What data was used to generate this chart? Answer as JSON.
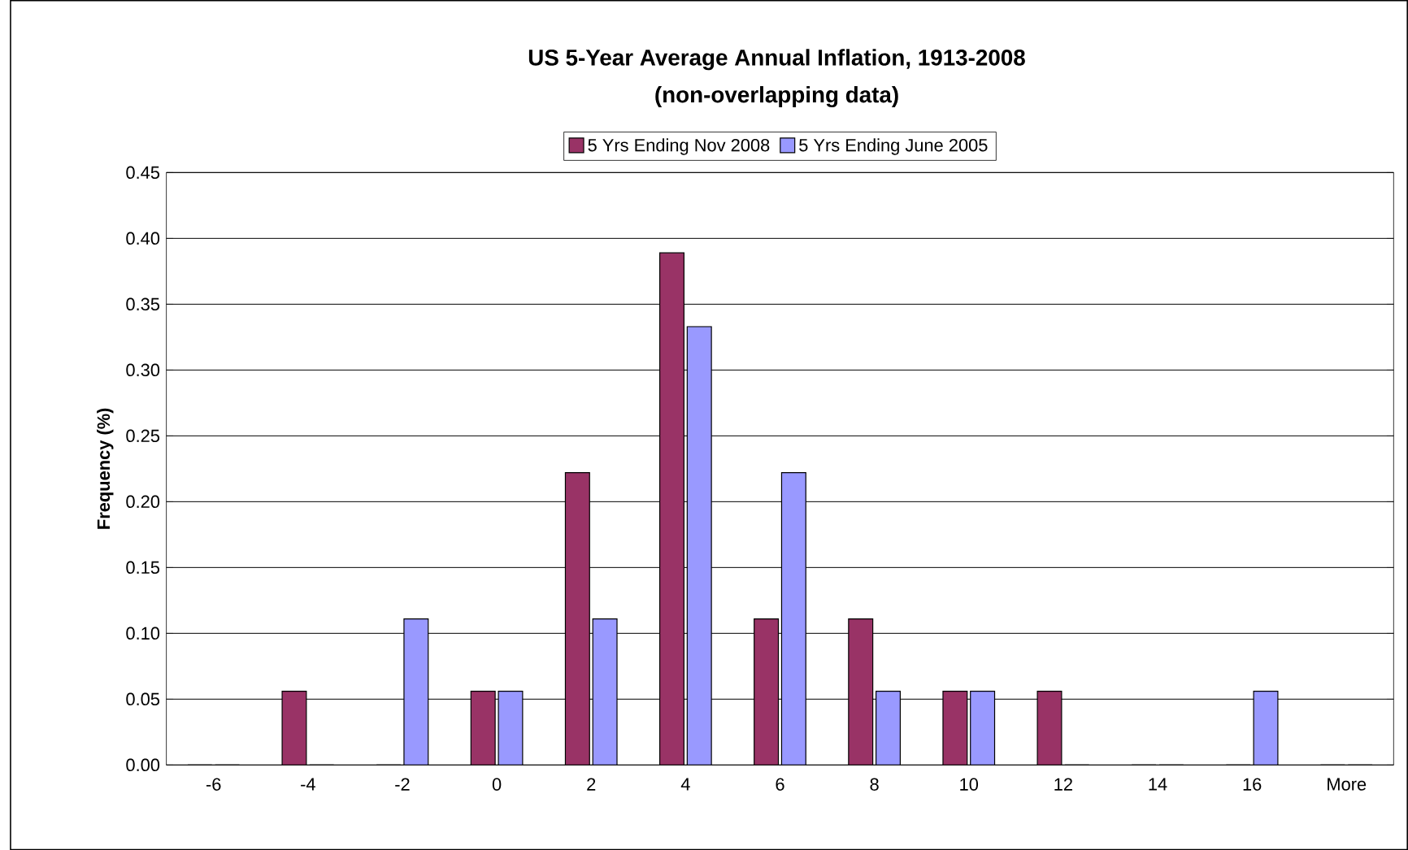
{
  "chart_data": {
    "type": "bar",
    "title": "US 5-Year Average Annual Inflation, 1913-2008",
    "subtitle": "(non-overlapping data)",
    "ylabel": "Frequency (%)",
    "categories": [
      "-6",
      "-4",
      "-2",
      "0",
      "2",
      "4",
      "6",
      "8",
      "10",
      "12",
      "14",
      "16",
      "More"
    ],
    "series": [
      {
        "name": "5 Yrs Ending Nov 2008",
        "color": "#993366",
        "values": [
          0,
          0.056,
          0,
          0.056,
          0.222,
          0.389,
          0.111,
          0.111,
          0.056,
          0.056,
          0,
          0,
          0
        ]
      },
      {
        "name": "5 Yrs Ending June 2005",
        "color": "#9999ff",
        "values": [
          0,
          0,
          0.111,
          0.056,
          0.111,
          0.333,
          0.222,
          0.056,
          0.056,
          0,
          0,
          0.056,
          0
        ]
      }
    ],
    "ylim": [
      0,
      0.45
    ],
    "yticks": [
      {
        "value": 0,
        "label": "0.00"
      },
      {
        "value": 0.05,
        "label": "0.05"
      },
      {
        "value": 0.1,
        "label": "0.10"
      },
      {
        "value": 0.15,
        "label": "0.15"
      },
      {
        "value": 0.2,
        "label": "0.20"
      },
      {
        "value": 0.25,
        "label": "0.25"
      },
      {
        "value": 0.3,
        "label": "0.30"
      },
      {
        "value": 0.35,
        "label": "0.35"
      },
      {
        "value": 0.4,
        "label": "0.40"
      },
      {
        "value": 0.45,
        "label": "0.45"
      }
    ],
    "grid": "y",
    "legend": "top"
  }
}
